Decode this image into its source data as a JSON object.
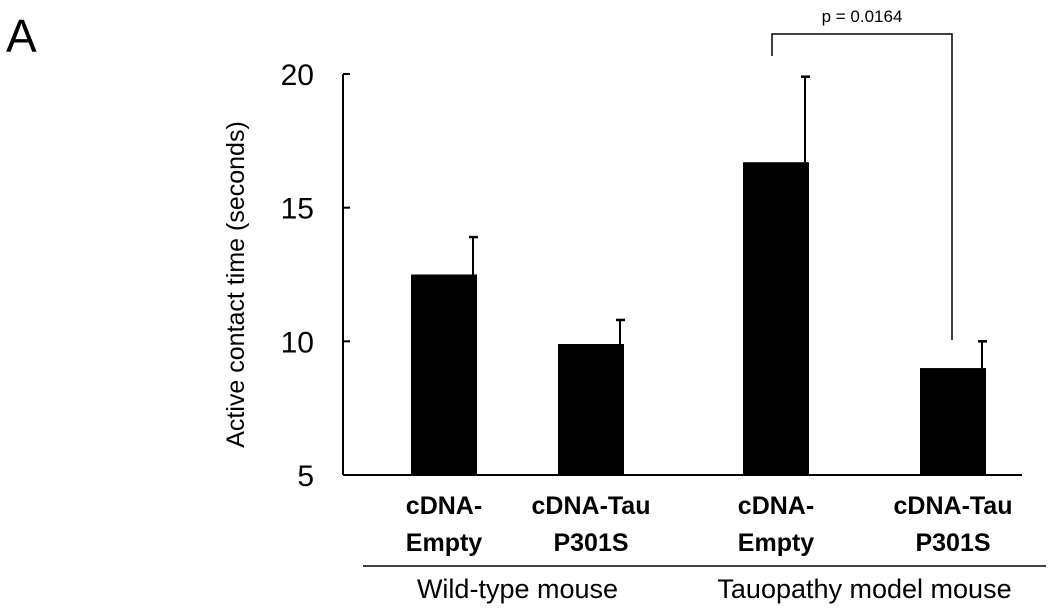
{
  "panel_label": "A",
  "chart_data": {
    "type": "bar",
    "title": "",
    "ylabel": "Active contact time (seconds)",
    "ylim": [
      5,
      20
    ],
    "yticks": [
      5,
      10,
      15,
      20
    ],
    "categories": [
      [
        "cDNA-",
        "Empty"
      ],
      [
        "cDNA-Tau",
        "P301S"
      ],
      [
        "cDNA-",
        "Empty"
      ],
      [
        "cDNA-Tau",
        "P301S"
      ]
    ],
    "groups": [
      {
        "label": "Wild-type mouse",
        "members": [
          0,
          1
        ]
      },
      {
        "label": "Tauopathy model mouse",
        "members": [
          2,
          3
        ]
      }
    ],
    "values": [
      12.5,
      9.9,
      16.7,
      9.0
    ],
    "errors": [
      1.4,
      0.9,
      3.2,
      1.0
    ],
    "significance": [
      {
        "between": [
          2,
          3
        ],
        "label": "p = 0.0164"
      }
    ],
    "bar_color": "#000000",
    "grid": false
  }
}
